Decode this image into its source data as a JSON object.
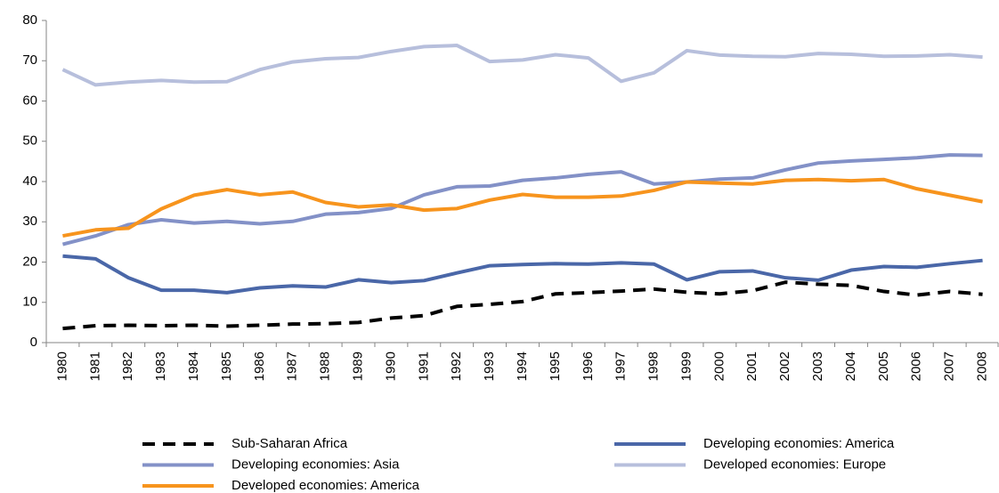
{
  "chart_data": {
    "type": "line",
    "categories": [
      "1980",
      "1981",
      "1982",
      "1983",
      "1984",
      "1985",
      "1986",
      "1987",
      "1988",
      "1989",
      "1990",
      "1991",
      "1992",
      "1993",
      "1994",
      "1995",
      "1996",
      "1997",
      "1998",
      "1999",
      "2000",
      "2001",
      "2002",
      "2003",
      "2004",
      "2005",
      "2006",
      "2007",
      "2008"
    ],
    "ylim": [
      0,
      80
    ],
    "yticks": [
      0,
      10,
      20,
      30,
      40,
      50,
      60,
      70,
      80
    ],
    "series": [
      {
        "name": "Sub-Saharan Africa",
        "color": "#000000",
        "line_style": "dashed",
        "values": [
          3.5,
          4.2,
          4.3,
          4.2,
          4.3,
          4.1,
          4.3,
          4.6,
          4.7,
          5.0,
          6.1,
          6.7,
          9.0,
          9.5,
          10.2,
          12.1,
          12.4,
          12.8,
          13.3,
          12.5,
          12.1,
          12.9,
          15.0,
          14.5,
          14.2,
          12.7,
          11.8,
          12.7,
          12.0
        ]
      },
      {
        "name": "Developing economies: America",
        "color": "#4a67a8",
        "line_style": "solid",
        "values": [
          21.5,
          20.8,
          16.1,
          13.0,
          13.0,
          12.4,
          13.6,
          14.1,
          13.8,
          15.6,
          14.9,
          15.4,
          17.3,
          19.1,
          19.4,
          19.6,
          19.5,
          19.8,
          19.5,
          15.6,
          17.6,
          17.8,
          16.1,
          15.5,
          18.0,
          18.9,
          18.7,
          19.6,
          20.4
        ]
      },
      {
        "name": "Developing economies: Asia",
        "color": "#8391c7",
        "line_style": "solid",
        "values": [
          24.4,
          26.5,
          29.3,
          30.5,
          29.7,
          30.1,
          29.5,
          30.1,
          31.9,
          32.3,
          33.3,
          36.7,
          38.7,
          38.9,
          40.3,
          40.9,
          41.8,
          42.4,
          39.4,
          39.9,
          40.6,
          40.9,
          42.9,
          44.6,
          45.1,
          45.5,
          45.9,
          46.6,
          46.5
        ]
      },
      {
        "name": "Developed economies: Europe",
        "color": "#b7bfdc",
        "line_style": "solid",
        "values": [
          67.8,
          64.0,
          64.7,
          65.1,
          64.7,
          64.8,
          67.8,
          69.7,
          70.5,
          70.8,
          72.3,
          73.5,
          73.8,
          69.8,
          70.2,
          71.5,
          70.7,
          64.9,
          67.0,
          72.5,
          71.4,
          71.1,
          71.0,
          71.8,
          71.6,
          71.1,
          71.2,
          71.5,
          70.9
        ]
      },
      {
        "name": "Developed economies: America",
        "color": "#f7941d",
        "line_style": "solid",
        "values": [
          26.5,
          28.0,
          28.4,
          33.2,
          36.6,
          38.0,
          36.7,
          37.4,
          34.8,
          33.7,
          34.2,
          32.9,
          33.3,
          35.4,
          36.8,
          36.1,
          36.1,
          36.4,
          37.8,
          39.9,
          39.6,
          39.4,
          40.3,
          40.5,
          40.2,
          40.5,
          38.2,
          36.6,
          35.0
        ]
      }
    ]
  }
}
